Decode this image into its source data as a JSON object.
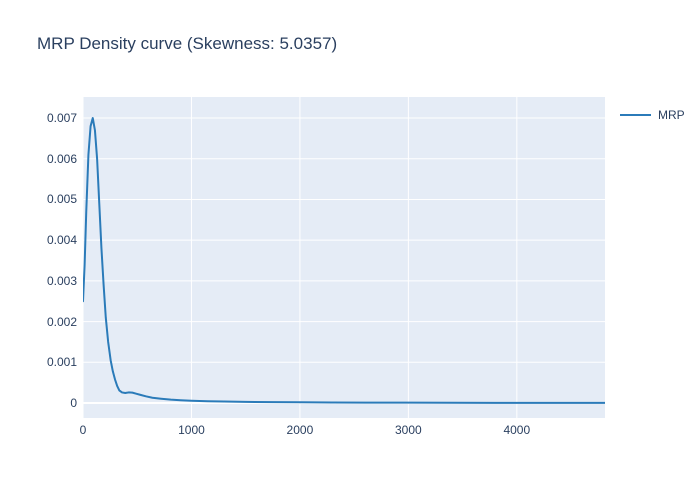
{
  "title": "MRP Density curve (Skewness: 5.0357)",
  "colors": {
    "page_bg": "#ffffff",
    "plot_bg": "#e5ecf6",
    "grid": "#ffffff",
    "line": "#2b7bb9",
    "text": "#2a3f5f"
  },
  "legend": {
    "position": "right",
    "items": [
      {
        "label": "MRP",
        "color": "#2b7bb9"
      }
    ]
  },
  "chart_data": {
    "type": "line",
    "title": "MRP Density curve (Skewness: 5.0357)",
    "xlabel": "",
    "ylabel": "",
    "grid": true,
    "legend_position": "right",
    "xlim": [
      0,
      4813
    ],
    "ylim": [
      -0.000368,
      0.007517
    ],
    "xticks": [
      0,
      1000,
      2000,
      3000,
      4000
    ],
    "xtick_labels": [
      "0",
      "1000",
      "2000",
      "3000",
      "4000"
    ],
    "yticks": [
      0,
      0.001,
      0.002,
      0.003,
      0.004,
      0.005,
      0.006,
      0.007
    ],
    "ytick_labels": [
      "0",
      "0.001",
      "0.002",
      "0.003",
      "0.004",
      "0.005",
      "0.006",
      "0.007"
    ],
    "series": [
      {
        "name": "MRP",
        "color": "#2b7bb9",
        "x": [
          0,
          15,
          30,
          50,
          70,
          90,
          110,
          130,
          150,
          170,
          190,
          210,
          232,
          255,
          275,
          295,
          315,
          335,
          360,
          390,
          420,
          455,
          490,
          530,
          580,
          640,
          720,
          810,
          900,
          1000,
          1150,
          1300,
          1500,
          1750,
          2000,
          2300,
          2600,
          3000,
          3400,
          3800,
          4200,
          4600,
          4813
        ],
        "y": [
          0.0025,
          0.0034,
          0.0047,
          0.0061,
          0.0068,
          0.007,
          0.0067,
          0.006,
          0.0049,
          0.0038,
          0.0029,
          0.0021,
          0.0015,
          0.00105,
          0.00078,
          0.00058,
          0.00042,
          0.00031,
          0.00026,
          0.000245,
          0.00026,
          0.000255,
          0.00023,
          0.0002,
          0.000165,
          0.00013,
          0.000105,
          8.2e-05,
          6.8e-05,
          5.6e-05,
          4.4e-05,
          3.6e-05,
          2.8e-05,
          2.2e-05,
          1.8e-05,
          1.4e-05,
          1.1e-05,
          8.5e-06,
          6.5e-06,
          4.8e-06,
          3.5e-06,
          2.5e-06,
          2.2e-06
        ]
      }
    ]
  }
}
